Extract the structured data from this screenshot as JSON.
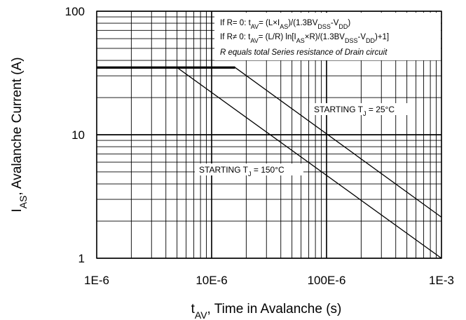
{
  "chart_data": {
    "type": "line",
    "xscale": "log",
    "yscale": "log",
    "xlim": [
      1e-06,
      0.001
    ],
    "ylim": [
      1,
      100
    ],
    "grid": true,
    "x_ticks": [
      {
        "value": 1e-06,
        "label": "1E-6"
      },
      {
        "value": 1e-05,
        "label": "10E-6"
      },
      {
        "value": 0.0001,
        "label": "100E-6"
      },
      {
        "value": 0.001,
        "label": "1E-3"
      }
    ],
    "y_ticks": [
      {
        "value": 1,
        "label": "1"
      },
      {
        "value": 10,
        "label": "10"
      },
      {
        "value": 100,
        "label": "100"
      }
    ],
    "xlabel": {
      "main": "t",
      "sub": "AV",
      "rest": ", Time in Avalanche (s)"
    },
    "ylabel": {
      "main": "I",
      "sub": "AS",
      "rest": ", Avalanche Current (A)"
    },
    "limit_line": {
      "x": [
        1e-06,
        1.6e-05
      ],
      "y": [
        35,
        35
      ]
    },
    "series": [
      {
        "name": "STARTING TJ = 25°C",
        "x": [
          1e-06,
          1.6e-05,
          0.001
        ],
        "y": [
          35,
          35,
          2.15
        ]
      },
      {
        "name": "STARTING TJ = 150°C",
        "x": [
          1e-06,
          5e-06,
          0.001
        ],
        "y": [
          35,
          35,
          1.0
        ]
      }
    ],
    "curve_labels": [
      {
        "text": "STARTING T",
        "sub": "J",
        "rest": " = 25°C"
      },
      {
        "text": "STARTING T",
        "sub": "J",
        "rest": " = 150°C"
      }
    ],
    "annotations": [
      "If R= 0: tAV= (L×IAS)/(1.3BVDSS-VDD)",
      "If R≠ 0: tAV= (L/R) ln[IAS×R)/(1.3BVDSS-VDD)+1]",
      "R equals total Series resistance of Drain circuit"
    ]
  }
}
